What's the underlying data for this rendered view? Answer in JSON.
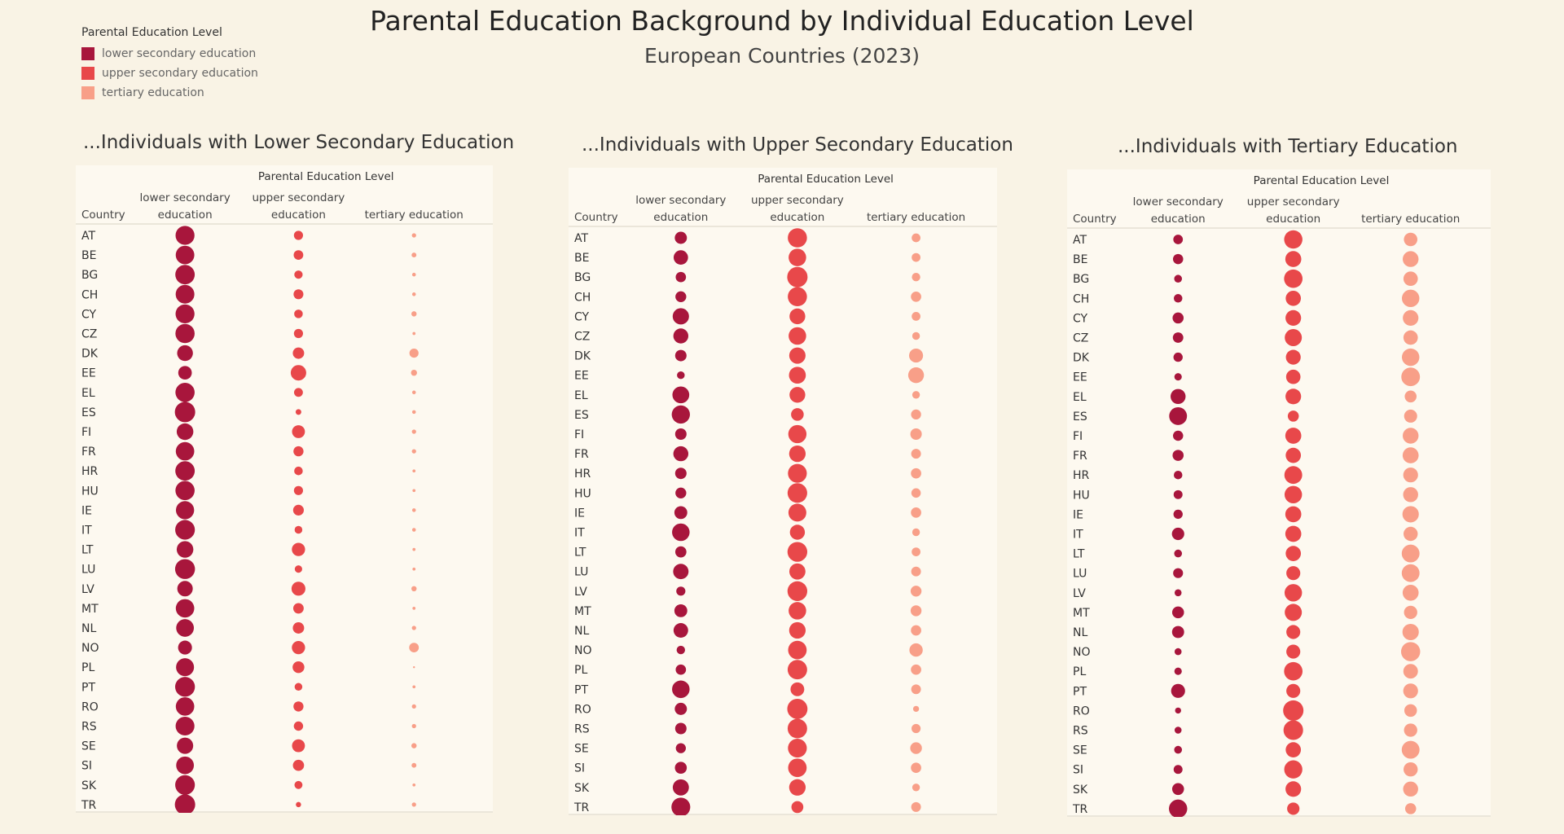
{
  "title": "Parental Education Background by Individual Education Level",
  "subtitle": "European Countries (2023)",
  "legend": {
    "title": "Parental Education Level",
    "items": [
      {
        "label": "lower secondary education",
        "color": "#a8163c"
      },
      {
        "label": "upper secondary education",
        "color": "#e8484a"
      },
      {
        "label": "tertiary education",
        "color": "#f89f88"
      }
    ]
  },
  "table_header": {
    "group_label": "Parental Education Level",
    "country_label": "Country",
    "columns": [
      [
        "lower secondary",
        "education"
      ],
      [
        "upper secondary",
        "education"
      ],
      [
        "tertiary education"
      ]
    ]
  },
  "chart_data": [
    {
      "type": "scatter",
      "title": "...Individuals with Lower Secondary Education",
      "categories": [
        "AT",
        "BE",
        "BG",
        "CH",
        "CY",
        "CZ",
        "DK",
        "EE",
        "EL",
        "ES",
        "FI",
        "FR",
        "HR",
        "HU",
        "IE",
        "IT",
        "LT",
        "LU",
        "LV",
        "MT",
        "NL",
        "NO",
        "PL",
        "PT",
        "RO",
        "RS",
        "SE",
        "SI",
        "SK",
        "TR"
      ],
      "series": [
        {
          "name": "lower secondary education",
          "values": [
            78,
            75,
            82,
            76,
            78,
            80,
            54,
            40,
            80,
            90,
            60,
            74,
            82,
            80,
            72,
            84,
            60,
            86,
            52,
            74,
            68,
            42,
            70,
            85,
            74,
            77,
            58,
            68,
            84,
            90
          ]
        },
        {
          "name": "upper secondary education",
          "values": [
            18,
            20,
            15,
            21,
            16,
            18,
            28,
            52,
            17,
            7,
            36,
            22,
            16,
            18,
            25,
            13,
            38,
            12,
            42,
            24,
            28,
            38,
            30,
            13,
            22,
            19,
            36,
            27,
            14,
            6
          ]
        },
        {
          "name": "tertiary education",
          "values": [
            4,
            5,
            3,
            3,
            6,
            2,
            18,
            8,
            3,
            3,
            4,
            4,
            2,
            2,
            3,
            3,
            2,
            2,
            6,
            2,
            4,
            20,
            0,
            2,
            4,
            4,
            6,
            5,
            2,
            4
          ]
        }
      ]
    },
    {
      "type": "scatter",
      "title": "...Individuals with Upper Secondary Education",
      "categories": [
        "AT",
        "BE",
        "BG",
        "CH",
        "CY",
        "CZ",
        "DK",
        "EE",
        "EL",
        "ES",
        "FI",
        "FR",
        "HR",
        "HU",
        "IE",
        "IT",
        "LT",
        "LU",
        "LV",
        "MT",
        "NL",
        "NO",
        "PL",
        "PT",
        "RO",
        "RS",
        "SE",
        "SI",
        "SK",
        "TR"
      ],
      "series": [
        {
          "name": "lower secondary education",
          "values": [
            25,
            35,
            18,
            20,
            45,
            38,
            22,
            10,
            48,
            56,
            22,
            38,
            22,
            20,
            28,
            52,
            21,
            40,
            14,
            28,
            36,
            12,
            18,
            52,
            25,
            22,
            17,
            24,
            44,
            60
          ]
        },
        {
          "name": "upper secondary education",
          "values": [
            62,
            52,
            70,
            62,
            42,
            52,
            45,
            48,
            42,
            27,
            56,
            46,
            60,
            65,
            54,
            38,
            66,
            44,
            66,
            52,
            46,
            58,
            64,
            32,
            69,
            64,
            60,
            58,
            46,
            24
          ]
        },
        {
          "name": "tertiary education",
          "values": [
            13,
            13,
            12,
            18,
            13,
            10,
            33,
            42,
            10,
            17,
            22,
            16,
            18,
            15,
            18,
            10,
            13,
            16,
            20,
            20,
            18,
            30,
            18,
            16,
            6,
            14,
            23,
            18,
            10,
            16
          ]
        }
      ]
    },
    {
      "type": "scatter",
      "title": "...Individuals with Tertiary Education",
      "categories": [
        "AT",
        "BE",
        "BG",
        "CH",
        "CY",
        "CZ",
        "DK",
        "EE",
        "EL",
        "ES",
        "FI",
        "FR",
        "HR",
        "HU",
        "IE",
        "IT",
        "LT",
        "LU",
        "LV",
        "MT",
        "NL",
        "NO",
        "PL",
        "PT",
        "RO",
        "RS",
        "SE",
        "SI",
        "SK",
        "TR"
      ],
      "series": [
        {
          "name": "lower secondary education",
          "values": [
            15,
            17,
            10,
            12,
            20,
            18,
            14,
            9,
            37,
            52,
            17,
            20,
            12,
            13,
            14,
            25,
            10,
            16,
            8,
            23,
            24,
            8,
            9,
            32,
            6,
            8,
            10,
            13,
            23,
            55
          ]
        },
        {
          "name": "upper secondary education",
          "values": [
            55,
            42,
            56,
            38,
            40,
            48,
            36,
            34,
            40,
            20,
            42,
            38,
            52,
            50,
            42,
            42,
            38,
            32,
            50,
            48,
            32,
            32,
            56,
            32,
            68,
            63,
            38,
            54,
            40,
            25
          ]
        },
        {
          "name": "tertiary education",
          "values": [
            30,
            41,
            34,
            50,
            40,
            34,
            50,
            57,
            23,
            28,
            41,
            42,
            36,
            37,
            44,
            33,
            52,
            52,
            42,
            29,
            44,
            60,
            35,
            36,
            26,
            29,
            52,
            33,
            37,
            20
          ]
        }
      ]
    }
  ]
}
